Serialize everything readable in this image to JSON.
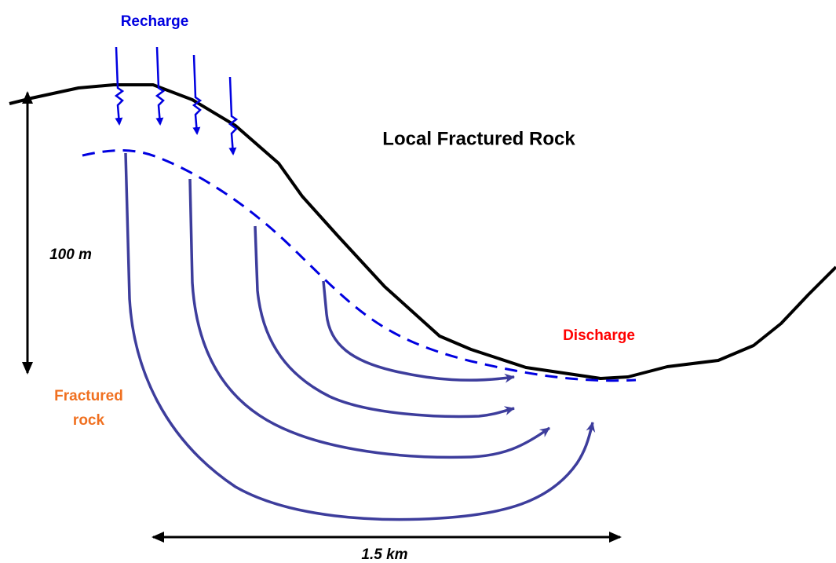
{
  "title": "Local Fractured Rock",
  "labels": {
    "recharge": "Recharge",
    "discharge": "Discharge",
    "fractured_rock": [
      "Fractured",
      "rock"
    ],
    "depth": "100 m",
    "width": "1.5 km"
  }
}
